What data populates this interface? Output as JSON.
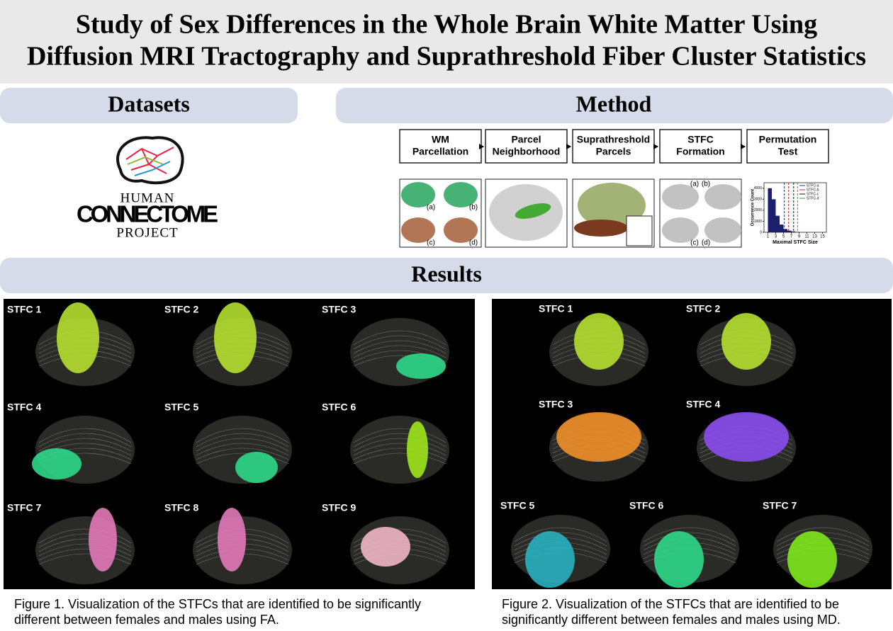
{
  "header": {
    "title": [
      "Study of Sex Differences in the Whole Brain White Matter Using",
      "Diffusion MRI Tractography and Suprathreshold Fiber Cluster Statistics"
    ]
  },
  "sections": {
    "datasets": "Datasets",
    "method": "Method",
    "results": "Results"
  },
  "logo": {
    "line1": "HUMAN",
    "line2": "CONNECTOME",
    "line3": "PROJECT"
  },
  "method": {
    "steps": [
      [
        "WM",
        "Parcellation"
      ],
      [
        "Parcel",
        "Neighborhood"
      ],
      [
        "Suprathreshold",
        "Parcels"
      ],
      [
        "STFC",
        "Formation"
      ],
      [
        "Permutation",
        "Test"
      ]
    ],
    "panel_labels": {
      "first": [
        "(a)",
        "(b)",
        "(c)",
        "(d)"
      ],
      "fourth": [
        "(a)",
        "(b)",
        "(c)",
        "(d)"
      ]
    },
    "histogram": {
      "ylabel": "Occurrence Count",
      "xlabel": "Maximal STFC Size",
      "bins": [
        1,
        2,
        3,
        4,
        5,
        6,
        7,
        8,
        9
      ],
      "counts": [
        4000,
        3000,
        1500,
        700,
        300,
        150,
        80,
        40
      ],
      "xlim": [
        0,
        16
      ],
      "ylim": [
        0,
        4500
      ],
      "xticks": [
        1,
        3,
        5,
        7,
        9,
        11,
        13,
        15
      ],
      "yticks": [
        0,
        1000,
        2000,
        3000,
        4000
      ],
      "legend": [
        {
          "name": "STFC-a",
          "color": "#1f3a93",
          "threshold": 5.2
        },
        {
          "name": "STFC-b",
          "color": "#d62728",
          "threshold": 6.3
        },
        {
          "name": "STFC-c",
          "color": "#111111",
          "threshold": 7.6
        },
        {
          "name": "STFC-d",
          "color": "#2ca02c",
          "threshold": 8.6
        }
      ]
    }
  },
  "figure1": {
    "labels": [
      "STFC 1",
      "STFC 2",
      "STFC 3",
      "STFC 4",
      "STFC 5",
      "STFC 6",
      "STFC 7",
      "STFC 8",
      "STFC 9"
    ],
    "caption": [
      "Figure 1. Visualization of the STFCs that are identified to be significantly",
      "different between females and males using FA."
    ]
  },
  "figure2": {
    "labels": [
      "STFC 1",
      "STFC 2",
      "STFC 3",
      "STFC 4",
      "STFC 5",
      "STFC 6",
      "STFC 7"
    ],
    "caption": [
      "Figure 2. Visualization of the STFCs that are identified to be",
      "significantly different between females and males using MD."
    ]
  }
}
